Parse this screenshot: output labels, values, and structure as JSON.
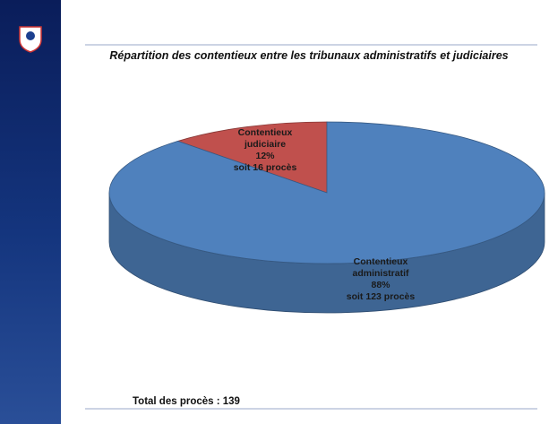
{
  "chart_data": {
    "type": "pie",
    "title": "Répartition des contentieux entre les tribunaux administratifs et judiciaires",
    "categories": [
      "Contentieux judiciaire",
      "Contentieux administratif"
    ],
    "values": [
      12,
      88
    ],
    "value_labels": [
      "12%",
      "88%"
    ],
    "annotations": [
      "soit 16 procès",
      "soit 123 procès"
    ],
    "colors": [
      "#c0504d",
      "#4f81bd"
    ],
    "footer": "Total des procès : 139"
  }
}
